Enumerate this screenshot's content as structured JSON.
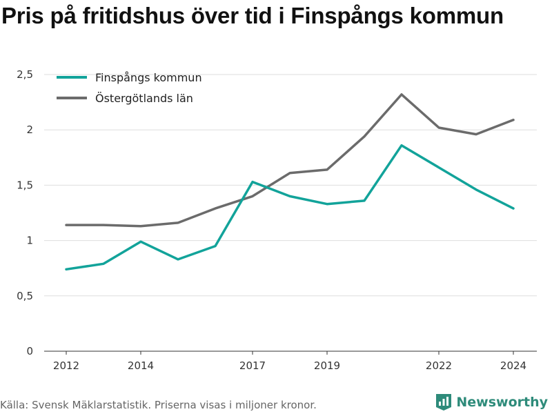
{
  "title": "Pris på fritidshus över tid i Finspångs kommun",
  "footer": {
    "source": "Källa: Svensk Mäklarstatistik. Priserna visas i miljoner kronor.",
    "brand": "Newsworthy"
  },
  "chart_data": {
    "type": "line",
    "title": "Pris på fritidshus över tid i Finspångs kommun",
    "xlabel": "",
    "ylabel": "",
    "x": [
      2012,
      2013,
      2014,
      2015,
      2016,
      2017,
      2018,
      2019,
      2020,
      2021,
      2022,
      2023,
      2024
    ],
    "xticks": [
      "2012",
      "2014",
      "2017",
      "2019",
      "2022",
      "2024"
    ],
    "yticks": [
      "0",
      "0,5",
      "1",
      "1,5",
      "2",
      "2,5"
    ],
    "ylim": [
      0,
      2.5
    ],
    "grid": true,
    "legend_position": "top-left",
    "series": [
      {
        "name": "Finspångs kommun",
        "color": "#12a39a",
        "values": [
          0.74,
          0.79,
          0.99,
          0.83,
          0.95,
          1.53,
          1.4,
          1.33,
          1.36,
          1.86,
          1.66,
          1.46,
          1.29
        ]
      },
      {
        "name": "Östergötlands län",
        "color": "#6b6b6b",
        "values": [
          1.14,
          1.14,
          1.13,
          1.16,
          1.29,
          1.4,
          1.61,
          1.64,
          1.94,
          2.32,
          2.02,
          1.96,
          2.09
        ]
      }
    ]
  }
}
